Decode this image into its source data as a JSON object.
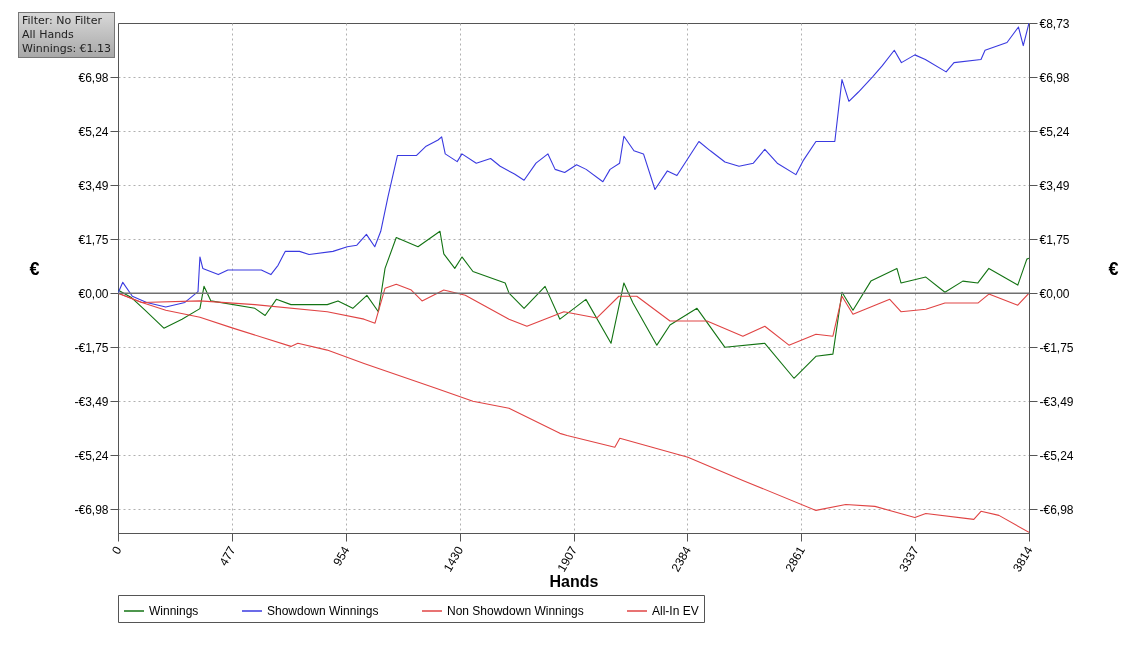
{
  "chart_data": {
    "type": "line",
    "xlabel": "Hands",
    "ylabel": "€",
    "y2label": "€",
    "annotations": [
      "Filter: No Filter",
      "All Hands",
      "Winnings: €1.13"
    ],
    "xlim": [
      0,
      3814
    ],
    "xticks": [
      0,
      477,
      954,
      1430,
      1907,
      2384,
      2861,
      3337,
      3814
    ],
    "ylim": [
      -7.75,
      8.73
    ],
    "yticks": [
      {
        "value": 6.98,
        "label": "€6,98"
      },
      {
        "value": 5.24,
        "label": "€5,24"
      },
      {
        "value": 3.49,
        "label": "€3,49"
      },
      {
        "value": 1.75,
        "label": "€1,75"
      },
      {
        "value": 0,
        "label": "€0,00"
      },
      {
        "value": -1.75,
        "label": "-€1,75"
      },
      {
        "value": -3.49,
        "label": "-€3,49"
      },
      {
        "value": -5.24,
        "label": "-€5,24"
      },
      {
        "value": -6.98,
        "label": "-€6,98"
      }
    ],
    "y2lim": [
      -7.75,
      8.73
    ],
    "y2ticks": [
      {
        "value": 8.73,
        "label": "€8,73"
      },
      {
        "value": 6.98,
        "label": "€6,98"
      },
      {
        "value": 5.24,
        "label": "€5,24"
      },
      {
        "value": 3.49,
        "label": "€3,49"
      },
      {
        "value": 1.75,
        "label": "€1,75"
      },
      {
        "value": 0,
        "label": "€0,00"
      },
      {
        "value": -1.75,
        "label": "-€1,75"
      },
      {
        "value": -3.49,
        "label": "-€3,49"
      },
      {
        "value": -5.24,
        "label": "-€5,24"
      },
      {
        "value": -6.98,
        "label": "-€6,98"
      }
    ],
    "grid": true,
    "legend": "bottom",
    "line_style": "solid",
    "ref_lines": [
      {
        "axis": "y",
        "value": 0,
        "color": "#707070"
      }
    ],
    "series": [
      {
        "name": "Winnings",
        "color": "#137313",
        "x": [
          0,
          54,
          113,
          192,
          268,
          343,
          360,
          389,
          573,
          616,
          663,
          724,
          876,
          921,
          983,
          1042,
          1090,
          1118,
          1165,
          1256,
          1348,
          1364,
          1410,
          1440,
          1486,
          1621,
          1637,
          1700,
          1788,
          1850,
          1959,
          2064,
          2118,
          2156,
          2256,
          2311,
          2424,
          2541,
          2708,
          2830,
          2922,
          2993,
          3031,
          3077,
          3152,
          3261,
          3278,
          3382,
          3462,
          3537,
          3600,
          3646,
          3767,
          3805,
          3814
        ],
        "values": [
          0.1,
          -0.13,
          -0.55,
          -1.13,
          -0.84,
          -0.5,
          0.22,
          -0.25,
          -0.49,
          -0.72,
          -0.2,
          -0.37,
          -0.37,
          -0.25,
          -0.49,
          -0.07,
          -0.6,
          0.8,
          1.8,
          1.5,
          2.0,
          1.27,
          0.8,
          1.17,
          0.7,
          0.33,
          0,
          -0.49,
          0.22,
          -0.84,
          -0.2,
          -1.62,
          0.33,
          -0.32,
          -1.68,
          -1.03,
          -0.49,
          -1.75,
          -1.62,
          -2.75,
          -2.04,
          -1.97,
          0.03,
          -0.55,
          0.39,
          0.8,
          0.33,
          0.52,
          0.03,
          0.39,
          0.33,
          0.8,
          0.26,
          1.1,
          1.13
        ]
      },
      {
        "name": "Showdown Winnings",
        "color": "#3a3ae0",
        "x": [
          0,
          20,
          60,
          120,
          200,
          280,
          335,
          343,
          355,
          420,
          460,
          600,
          640,
          670,
          700,
          760,
          800,
          900,
          960,
          1000,
          1040,
          1075,
          1100,
          1130,
          1170,
          1250,
          1290,
          1340,
          1355,
          1370,
          1420,
          1440,
          1500,
          1560,
          1600,
          1660,
          1700,
          1750,
          1800,
          1830,
          1870,
          1920,
          1960,
          2030,
          2060,
          2100,
          2118,
          2160,
          2200,
          2248,
          2300,
          2340,
          2386,
          2432,
          2480,
          2541,
          2600,
          2660,
          2708,
          2760,
          2838,
          2870,
          2922,
          3001,
          3031,
          3060,
          3100,
          3160,
          3200,
          3250,
          3280,
          3336,
          3380,
          3467,
          3500,
          3613,
          3630,
          3722,
          3770,
          3790,
          3814
        ],
        "values": [
          0,
          0.35,
          -0.1,
          -0.3,
          -0.45,
          -0.3,
          0.05,
          1.17,
          0.8,
          0.6,
          0.75,
          0.75,
          0.6,
          0.9,
          1.35,
          1.35,
          1.25,
          1.35,
          1.5,
          1.55,
          1.9,
          1.5,
          2.0,
          3.1,
          4.45,
          4.45,
          4.75,
          4.95,
          5.05,
          4.5,
          4.25,
          4.5,
          4.2,
          4.35,
          4.1,
          3.85,
          3.65,
          4.2,
          4.5,
          4.0,
          3.9,
          4.15,
          4.0,
          3.6,
          4.0,
          4.2,
          5.07,
          4.6,
          4.5,
          3.35,
          3.95,
          3.8,
          4.35,
          4.9,
          4.6,
          4.24,
          4.1,
          4.2,
          4.65,
          4.2,
          3.83,
          4.3,
          4.9,
          4.9,
          6.9,
          6.2,
          6.5,
          7.0,
          7.35,
          7.85,
          7.45,
          7.7,
          7.55,
          7.15,
          7.45,
          7.55,
          7.85,
          8.1,
          8.6,
          8.0,
          8.73
        ]
      },
      {
        "name": "Non Showdown Winnings",
        "color": "#e04444",
        "x": [
          0,
          100,
          343,
          573,
          876,
          1030,
          1076,
          1118,
          1165,
          1228,
          1273,
          1364,
          1454,
          1637,
          1712,
          1867,
          2005,
          2097,
          2172,
          2311,
          2466,
          2616,
          2708,
          2809,
          2922,
          2993,
          3031,
          3077,
          3231,
          3278,
          3382,
          3462,
          3600,
          3646,
          3767,
          3814
        ],
        "values": [
          0,
          -0.3,
          -0.25,
          -0.37,
          -0.6,
          -0.84,
          -0.97,
          0.16,
          0.29,
          0.1,
          -0.25,
          0.1,
          -0.07,
          -0.84,
          -1.07,
          -0.6,
          -0.8,
          -0.1,
          -0.1,
          -0.9,
          -0.9,
          -1.39,
          -1.07,
          -1.68,
          -1.33,
          -1.39,
          -0.1,
          -0.68,
          -0.2,
          -0.6,
          -0.52,
          -0.32,
          -0.32,
          -0.03,
          -0.39,
          0.0
        ]
      },
      {
        "name": "All-In EV",
        "color": "#e04444",
        "x": [
          0,
          100,
          200,
          343,
          481,
          724,
          753,
          876,
          1030,
          1331,
          1486,
          1637,
          1850,
          1880,
          2080,
          2101,
          2386,
          2616,
          2922,
          3047,
          3169,
          3336,
          3382,
          3583,
          3613,
          3688,
          3814
        ],
        "values": [
          0,
          -0.3,
          -0.55,
          -0.78,
          -1.13,
          -1.72,
          -1.62,
          -1.84,
          -2.27,
          -3.07,
          -3.49,
          -3.72,
          -4.53,
          -4.6,
          -4.98,
          -4.69,
          -5.3,
          -6.05,
          -7.02,
          -6.83,
          -6.89,
          -7.25,
          -7.12,
          -7.31,
          -7.05,
          -7.18,
          -7.73
        ]
      }
    ]
  }
}
